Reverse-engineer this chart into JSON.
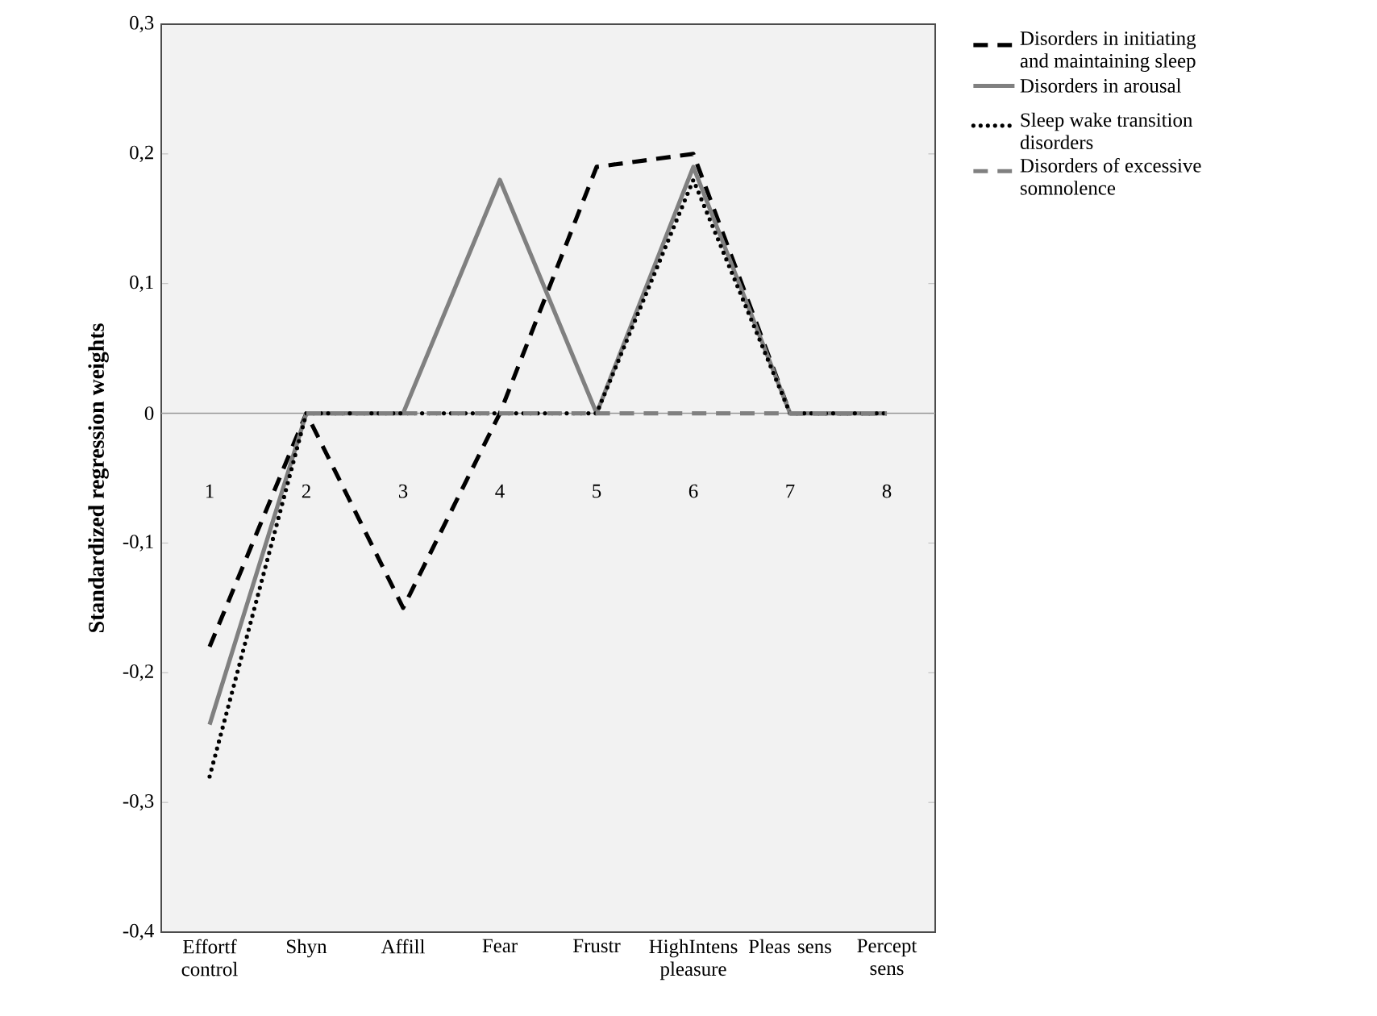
{
  "chart_data": {
    "type": "line",
    "ylabel": "Standardized regression weights",
    "categories": [
      "Effortf control",
      "Shyn",
      "Affill",
      "Fear",
      "Frustr",
      "HighIntens pleasure",
      "Pleas sens",
      "Percept sens"
    ],
    "series": [
      {
        "name": "Disorders in initiating and maintaining sleep",
        "color": "#000000",
        "line_style": "dashed",
        "values": [
          -0.18,
          0,
          -0.15,
          0,
          0.19,
          0.2,
          0,
          0
        ]
      },
      {
        "name": "Disorders in arousal",
        "color": "#808080",
        "line_style": "solid",
        "values": [
          -0.24,
          0,
          0,
          0.18,
          0,
          0.19,
          0,
          0
        ]
      },
      {
        "name": "Sleep wake transition disorders",
        "color": "#000000",
        "line_style": "dotted",
        "values": [
          -0.28,
          0,
          0,
          0,
          0,
          0.18,
          0,
          0
        ]
      },
      {
        "name": "Disorders of excessive somnolence",
        "color": "#808080",
        "line_style": "dashed",
        "values": [
          null,
          0,
          0,
          0,
          0,
          0,
          0,
          0
        ]
      }
    ],
    "ylim": [
      -0.4,
      0.3
    ],
    "yticks": [
      {
        "value": -0.4,
        "label": "-0,4"
      },
      {
        "value": -0.3,
        "label": "-0,3"
      },
      {
        "value": -0.2,
        "label": "-0,2"
      },
      {
        "value": -0.1,
        "label": "-0,1"
      },
      0,
      {
        "value": 0.1,
        "label": "0,1"
      },
      {
        "value": 0.2,
        "label": "0,2"
      },
      {
        "value": 0.3,
        "label": "0,3"
      }
    ],
    "ref_lines": [
      {
        "axis": "y",
        "value": 0,
        "color": "#999999"
      }
    ],
    "annotations": [
      "1",
      "2",
      "3",
      "4",
      "5",
      "6",
      "7",
      "8"
    ],
    "legend": "top right",
    "grid": false,
    "marker": "none"
  }
}
